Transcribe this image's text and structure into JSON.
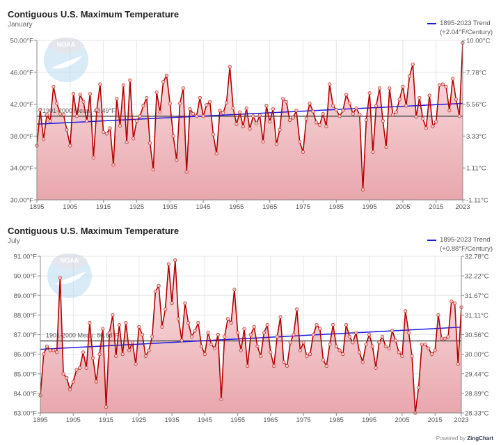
{
  "charts_meta": {
    "powered_by": "Powered by",
    "powered_brand": "ZingChart",
    "logo": "noaa-logo"
  },
  "chart_data": [
    {
      "type": "line",
      "title": "Contiguous U.S. Maximum Temperature",
      "subtitle": "January",
      "legend": {
        "label_line1": "1895-2023 Trend",
        "label_line2": "(+2.04°F/Century)",
        "color": "#1a1ae6",
        "placement": "top-right"
      },
      "mean_label": "1901-2000 Mean: 40.49°F",
      "mean_value": 40.49,
      "trend": {
        "start_year": 1895,
        "start_value": 39.5,
        "end_year": 2023,
        "end_value": 42.1
      },
      "x_ticks": [
        "1895",
        "1905",
        "1915",
        "1925",
        "1935",
        "1945",
        "1955",
        "1965",
        "1975",
        "1985",
        "1995",
        "2005",
        "2015",
        "2023"
      ],
      "y_left_ticks": [
        "30.00°F",
        "34.00°F",
        "38.00°F",
        "42.00°F",
        "46.00°F",
        "50.00°F"
      ],
      "y_right_ticks": [
        "-1.11°C",
        "1.11°C",
        "3.33°C",
        "5.56°C",
        "7.78°C",
        "10.00°C"
      ],
      "ylim": [
        30,
        50
      ],
      "x_start": 1895,
      "series_color": "#b30000",
      "values": [
        36.8,
        41.3,
        37.6,
        40.7,
        39.9,
        44.2,
        42.1,
        40.8,
        40.7,
        38.8,
        36.8,
        43.3,
        40.5,
        43.2,
        42.3,
        39.9,
        43.3,
        35.3,
        41.3,
        44.5,
        38.5,
        38.3,
        39.0,
        34.4,
        42.7,
        39.3,
        44.4,
        37.2,
        45.0,
        37.7,
        39.9,
        40.5,
        41.8,
        42.8,
        37.1,
        33.8,
        43.5,
        41.0,
        44.8,
        45.6,
        42.1,
        38.0,
        35.0,
        42.1,
        44.0,
        33.5,
        41.4,
        40.8,
        40.5,
        42.8,
        40.5,
        41.9,
        42.3,
        38.2,
        35.8,
        41.2,
        40.9,
        42.2,
        46.7,
        41.5,
        39.5,
        41.0,
        39.2,
        41.5,
        38.9,
        40.5,
        39.6,
        40.6,
        37.3,
        41.8,
        39.8,
        41.4,
        37.0,
        38.8,
        42.7,
        42.3,
        40.0,
        40.3,
        41.2,
        37.3,
        36.0,
        40.2,
        42.1,
        41.1,
        39.7,
        39.4,
        40.8,
        39.2,
        44.5,
        41.8,
        41.3,
        40.5,
        41.2,
        43.2,
        42.1,
        40.8,
        41.5,
        40.7,
        31.3,
        40.0,
        43.4,
        36.0,
        41.8,
        44.0,
        39.9,
        36.6,
        44.0,
        40.7,
        41.0,
        42.6,
        44.2,
        41.8,
        45.5,
        47.0,
        40.4,
        42.8,
        40.2,
        39.0,
        43.1,
        39.2,
        39.8,
        44.4,
        44.5,
        44.2,
        41.2,
        45.2,
        42.6,
        40.5,
        49.7
      ]
    },
    {
      "type": "line",
      "title": "Contiguous U.S. Maximum Temperature",
      "subtitle": "July",
      "legend": {
        "label_line1": "1895-2023 Trend",
        "label_line2": "(+0.88°F/Century)",
        "color": "#1a1ae6",
        "placement": "top-right"
      },
      "mean_label": "1901-2000 Mean: 86.68°F",
      "mean_value": 86.68,
      "trend": {
        "start_year": 1895,
        "start_value": 86.25,
        "end_year": 2023,
        "end_value": 87.38
      },
      "x_ticks": [
        "1895",
        "1905",
        "1915",
        "1925",
        "1935",
        "1945",
        "1955",
        "1965",
        "1975",
        "1985",
        "1995",
        "2005",
        "2015",
        "2023"
      ],
      "y_left_ticks": [
        "83.00°F",
        "84.00°F",
        "85.00°F",
        "86.00°F",
        "87.00°F",
        "88.00°F",
        "89.00°F",
        "90.00°F",
        "91.00°F"
      ],
      "y_right_ticks": [
        "28.33°C",
        "28.89°C",
        "29.44°C",
        "30.00°C",
        "30.56°C",
        "31.11°C",
        "31.67°C",
        "32.22°C",
        "32.78°C"
      ],
      "ylim": [
        83,
        91
      ],
      "x_start": 1895,
      "series_color": "#b30000",
      "values": [
        83.9,
        86.0,
        86.4,
        86.2,
        86.2,
        86.1,
        89.9,
        85.0,
        84.8,
        84.2,
        84.6,
        85.2,
        85.3,
        86.1,
        85.3,
        87.6,
        85.8,
        84.6,
        86.0,
        87.3,
        83.3,
        87.1,
        88.0,
        85.9,
        87.5,
        86.0,
        87.6,
        86.2,
        86.6,
        85.5,
        87.4,
        87.0,
        85.9,
        86.2,
        86.9,
        89.2,
        89.5,
        87.4,
        88.3,
        90.6,
        88.6,
        90.8,
        87.8,
        86.7,
        88.6,
        87.6,
        86.9,
        87.2,
        87.6,
        86.4,
        86.0,
        87.1,
        86.5,
        86.3,
        87.0,
        83.7,
        86.9,
        87.8,
        87.6,
        89.3,
        87.1,
        86.2,
        87.3,
        85.4,
        87.0,
        87.4,
        86.4,
        85.9,
        87.1,
        87.5,
        86.1,
        85.4,
        86.9,
        87.9,
        85.6,
        85.4,
        86.6,
        87.0,
        88.3,
        86.2,
        86.6,
        85.9,
        86.0,
        87.0,
        87.5,
        87.3,
        85.7,
        85.4,
        86.5,
        87.5,
        86.4,
        86.2,
        86.0,
        87.5,
        86.9,
        86.6,
        87.1,
        86.1,
        85.6,
        86.5,
        87.0,
        86.4,
        85.3,
        86.6,
        86.9,
        86.4,
        86.3,
        87.2,
        86.7,
        86.1,
        85.9,
        88.2,
        87.1,
        85.9,
        83.0,
        84.3,
        86.5,
        86.5,
        86.3,
        86.0,
        86.2,
        88.0,
        86.8,
        86.8,
        86.9,
        88.7,
        88.6,
        85.5,
        88.4
      ]
    }
  ]
}
